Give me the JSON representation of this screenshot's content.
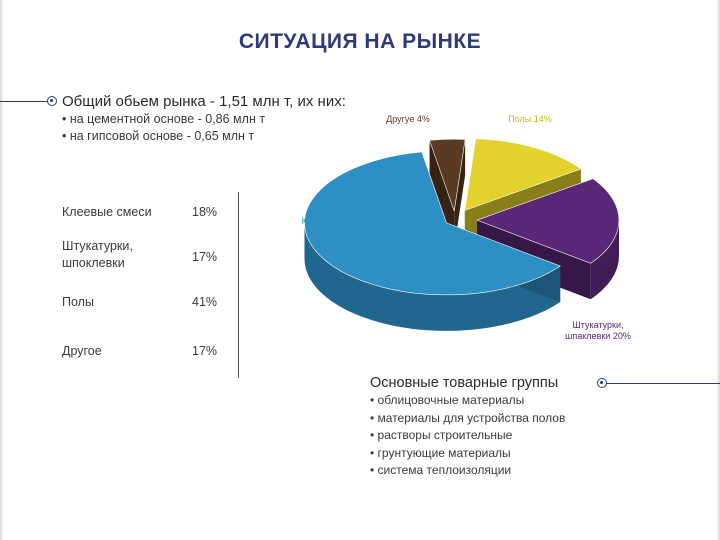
{
  "title": "СИТУАЦИЯ НА РЫНКЕ",
  "market": {
    "heading": "Общий обьем рынка - 1,51 млн т, их них:",
    "lines": [
      "• на цементной основе - 0,86 млн т",
      "• на гипсовой основе - 0,65 млн т"
    ]
  },
  "shares_table": [
    {
      "label": "Клеевые смеси",
      "value": "18%"
    },
    {
      "label": "Штукатурки, шпоклевки",
      "value": "17%"
    },
    {
      "label": "Полы",
      "value": "41%"
    },
    {
      "label": "Другое",
      "value": "17%"
    }
  ],
  "chart_data": {
    "type": "pie",
    "style": "3d-exploded",
    "slices": [
      {
        "label": "Другуе 4%",
        "value": 4,
        "color": "#5b3a22"
      },
      {
        "label": "Полы 14%",
        "value": 14,
        "color": "#e3d22c"
      },
      {
        "label": "Штукатурки, шпаклевки 20%",
        "value": 20,
        "color": "#5a2777"
      },
      {
        "label": "Клеевые смеси 62%",
        "value": 62,
        "color": "#2e8fc4"
      }
    ],
    "label_colors": {
      "Другуе 4%": "#5b3a22",
      "Полы 14%": "#c9b41a",
      "Штукатурки, шпаклевки 20%": "#5a2777",
      "Клеевые смеси 62%": "#2e8fc4"
    }
  },
  "groups": {
    "heading": "Основные товарные группы",
    "items": [
      "• облицовочные материалы",
      "• материалы для устройства полов",
      "• растворы строительные",
      "• грунтующие материалы",
      "• система теплоизоляции"
    ]
  },
  "colors": {
    "accent": "#2e3a78"
  }
}
